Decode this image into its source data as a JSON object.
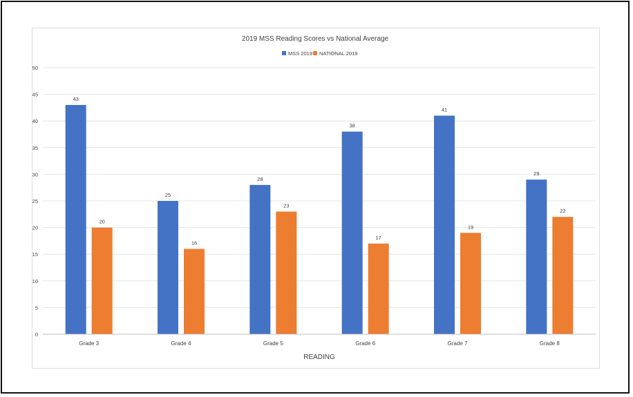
{
  "chart_data": {
    "type": "bar",
    "title": "2019 MSS Reading Scores vs National Average",
    "xlabel": "READING",
    "ylabel": "",
    "categories": [
      "Grade 3",
      "Grade 4",
      "Grade 5",
      "Grade 6",
      "Grade 7",
      "Grade 8"
    ],
    "series": [
      {
        "name": "MSS 2019",
        "color": "#4472c4",
        "values": [
          43,
          25,
          28,
          38,
          41,
          29
        ]
      },
      {
        "name": "NATIONAL 2019",
        "color": "#ed7d31",
        "values": [
          20,
          16,
          23,
          17,
          19,
          22
        ]
      }
    ],
    "ylim": [
      0,
      50
    ],
    "yticks": [
      0,
      5,
      10,
      15,
      20,
      25,
      30,
      35,
      40,
      45,
      50
    ],
    "grid": true,
    "legend": "top-center",
    "data_labels": true
  }
}
